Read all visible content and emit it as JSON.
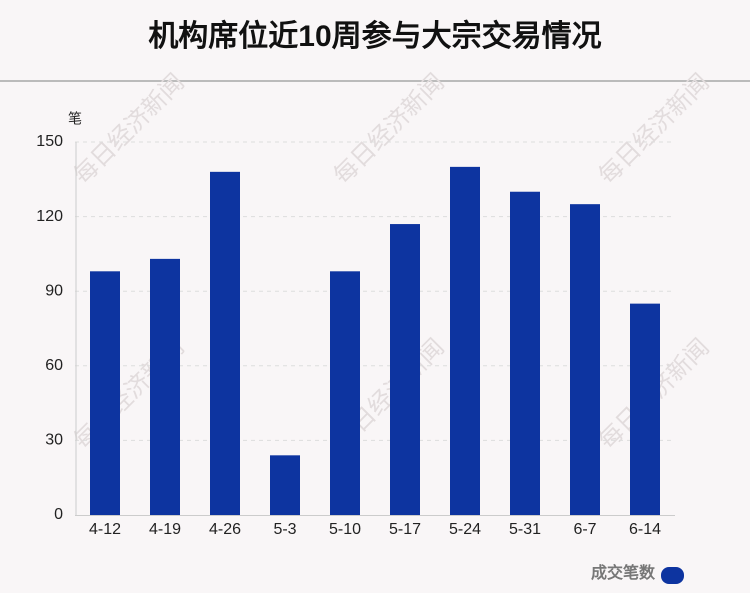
{
  "chart_data": {
    "type": "bar",
    "title": "机构席位近10周参与大宗交易情况",
    "y_label": "笔",
    "categories": [
      "4-12",
      "4-19",
      "4-26",
      "5-3",
      "5-10",
      "5-17",
      "5-24",
      "5-31",
      "6-7",
      "6-14"
    ],
    "series": [
      {
        "name": "成交笔数",
        "color": "#0d34a0",
        "values": [
          98,
          103,
          138,
          24,
          98,
          117,
          140,
          130,
          125,
          85
        ]
      }
    ],
    "ylim": [
      0,
      150
    ],
    "yticks": [
      0,
      30,
      60,
      90,
      120,
      150
    ],
    "grid": true,
    "legend": "bottom-right",
    "watermark": "每日经济新闻"
  }
}
